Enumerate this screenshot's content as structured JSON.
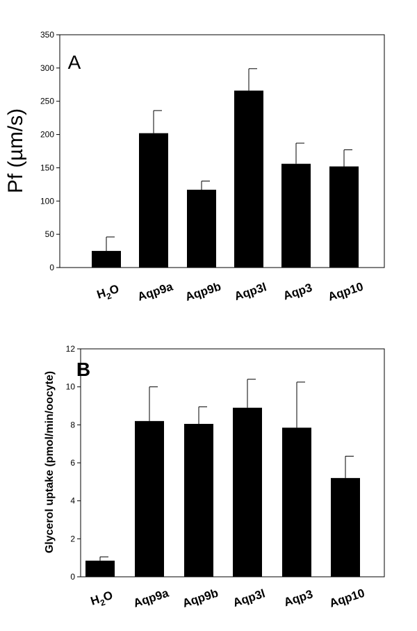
{
  "chart_data": [
    {
      "type": "bar",
      "panel_label": "A",
      "ylabel": "Pf (µm/s)",
      "ylim": [
        0,
        350
      ],
      "yticks": [
        0,
        50,
        100,
        150,
        200,
        250,
        300,
        350
      ],
      "categories": [
        {
          "main": "H",
          "sub": "2",
          "tail": "O"
        },
        {
          "main": "Aqp9a"
        },
        {
          "main": "Aqp9b"
        },
        {
          "main": "Aqp3l"
        },
        {
          "main": "Aqp3"
        },
        {
          "main": "Aqp10"
        }
      ],
      "values": [
        25,
        202,
        117,
        266,
        156,
        152
      ],
      "errors": [
        21,
        34,
        13,
        33,
        31,
        25
      ],
      "bar_color": "#000000"
    },
    {
      "type": "bar",
      "panel_label": "B",
      "ylabel": "Glycerol  uptake (pmol/min/oocyte)",
      "ylim": [
        0,
        12
      ],
      "yticks": [
        0,
        2,
        4,
        6,
        8,
        10,
        12
      ],
      "categories": [
        {
          "main": "H",
          "sub": "2",
          "tail": "O"
        },
        {
          "main": "Aqp9a"
        },
        {
          "main": "Aqp9b"
        },
        {
          "main": "Aqp3l"
        },
        {
          "main": "Aqp3"
        },
        {
          "main": "Aqp10"
        }
      ],
      "values": [
        0.85,
        8.2,
        8.05,
        8.9,
        7.85,
        5.2
      ],
      "errors": [
        0.2,
        1.8,
        0.9,
        1.5,
        2.4,
        1.15
      ],
      "bar_color": "#000000"
    }
  ]
}
